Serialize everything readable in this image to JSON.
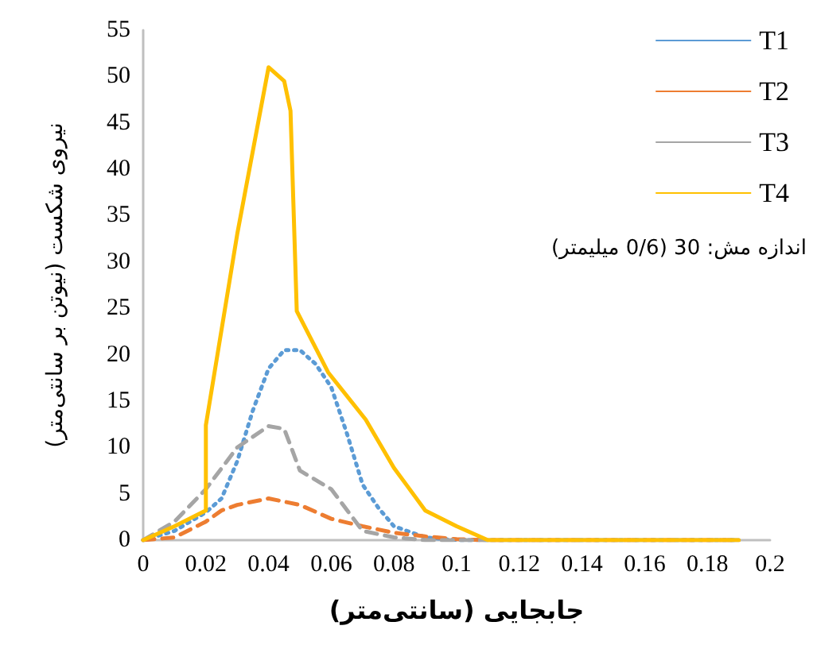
{
  "chart_data": {
    "type": "line",
    "xlabel": "جابجایی (سانتی‌متر)",
    "ylabel": "نیروی شکست (نیوتن بر سانتی‌متر)",
    "annotations": [
      "اندازه مش: 30 (0/6 میلیمتر)"
    ],
    "xlim": [
      0,
      0.2
    ],
    "xticks": [
      0,
      0.02,
      0.04,
      0.06,
      0.08,
      0.1,
      0.12,
      0.14,
      0.16,
      0.18,
      0.2
    ],
    "ylim": [
      0,
      55
    ],
    "yticks": [
      0,
      5,
      10,
      15,
      20,
      25,
      30,
      35,
      40,
      45,
      50,
      55
    ],
    "grid": false,
    "legend": "top right",
    "marker": "none",
    "series": [
      {
        "name": "T1",
        "color": "#5b9bd5",
        "line_style": "dotted",
        "x": [
          0,
          0.01,
          0.02,
          0.025,
          0.03,
          0.035,
          0.04,
          0.045,
          0.05,
          0.055,
          0.06,
          0.065,
          0.07,
          0.075,
          0.08,
          0.09,
          0.1,
          0.11,
          0.19
        ],
        "values": [
          0,
          1,
          3,
          4.5,
          8.5,
          14,
          18.5,
          20.5,
          20.5,
          19,
          16.5,
          11.5,
          6,
          3.5,
          1.5,
          0.3,
          0,
          0,
          0
        ]
      },
      {
        "name": "T2",
        "color": "#ed7d31",
        "line_style": "dashed",
        "x": [
          0,
          0.01,
          0.02,
          0.025,
          0.03,
          0.04,
          0.05,
          0.06,
          0.07,
          0.08,
          0.09,
          0.1,
          0.11,
          0.19
        ],
        "values": [
          0,
          0.3,
          2,
          3.2,
          3.8,
          4.5,
          3.8,
          2.3,
          1.5,
          0.8,
          0.4,
          0.1,
          0,
          0
        ]
      },
      {
        "name": "T3",
        "color": "#a5a5a5",
        "line_style": "dashed",
        "x": [
          0,
          0.01,
          0.02,
          0.03,
          0.04,
          0.045,
          0.05,
          0.06,
          0.07,
          0.08,
          0.09,
          0.19
        ],
        "values": [
          0,
          2,
          5.5,
          10,
          12.3,
          12,
          7.5,
          5.5,
          1,
          0.3,
          0,
          0
        ]
      },
      {
        "name": "T4",
        "color": "#ffc000",
        "line_style": "solid",
        "x": [
          0,
          0.01,
          0.02,
          0.02,
          0.03,
          0.04,
          0.045,
          0.047,
          0.049,
          0.059,
          0.071,
          0.08,
          0.09,
          0.1,
          0.11,
          0.19
        ],
        "values": [
          0,
          1.5,
          3.2,
          12.4,
          33,
          51,
          49.5,
          46.3,
          24.7,
          18.1,
          13,
          7.8,
          3.2,
          1.5,
          0,
          0
        ]
      }
    ]
  }
}
